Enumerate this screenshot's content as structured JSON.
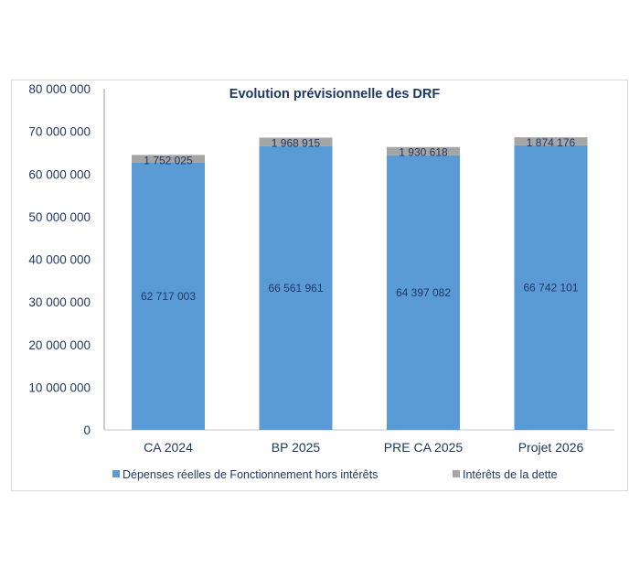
{
  "chart_data": {
    "type": "bar",
    "stacked": true,
    "title": "Evolution prévisionnelle des DRF",
    "categories": [
      "CA 2024",
      "BP 2025",
      "PRE CA 2025",
      "Projet 2026"
    ],
    "series": [
      {
        "name": "Dépenses réelles de Fonctionnement hors intérêts",
        "color": "#5b9bd5",
        "values": [
          62717003,
          66561961,
          64397082,
          66742101
        ],
        "labels": [
          "62 717 003",
          "66 561 961",
          "64 397 082",
          "66 742 101"
        ]
      },
      {
        "name": "Intérêts de la dette",
        "color": "#a5a5a5",
        "values": [
          1752025,
          1968915,
          1930618,
          1874176
        ],
        "labels": [
          "1 752 025",
          "1 968 915",
          "1 930 618",
          "1 874 176"
        ]
      }
    ],
    "ylim": [
      0,
      80000000
    ],
    "yticks": [
      0,
      10000000,
      20000000,
      30000000,
      40000000,
      50000000,
      60000000,
      70000000,
      80000000
    ],
    "ytick_labels": [
      "0",
      "10 000 000",
      "20 000 000",
      "30 000 000",
      "40 000 000",
      "50 000 000",
      "60 000 000",
      "70 000 000",
      "80 000 000"
    ],
    "xlabel": "",
    "ylabel": "",
    "grid": false,
    "legend": "bottom"
  }
}
